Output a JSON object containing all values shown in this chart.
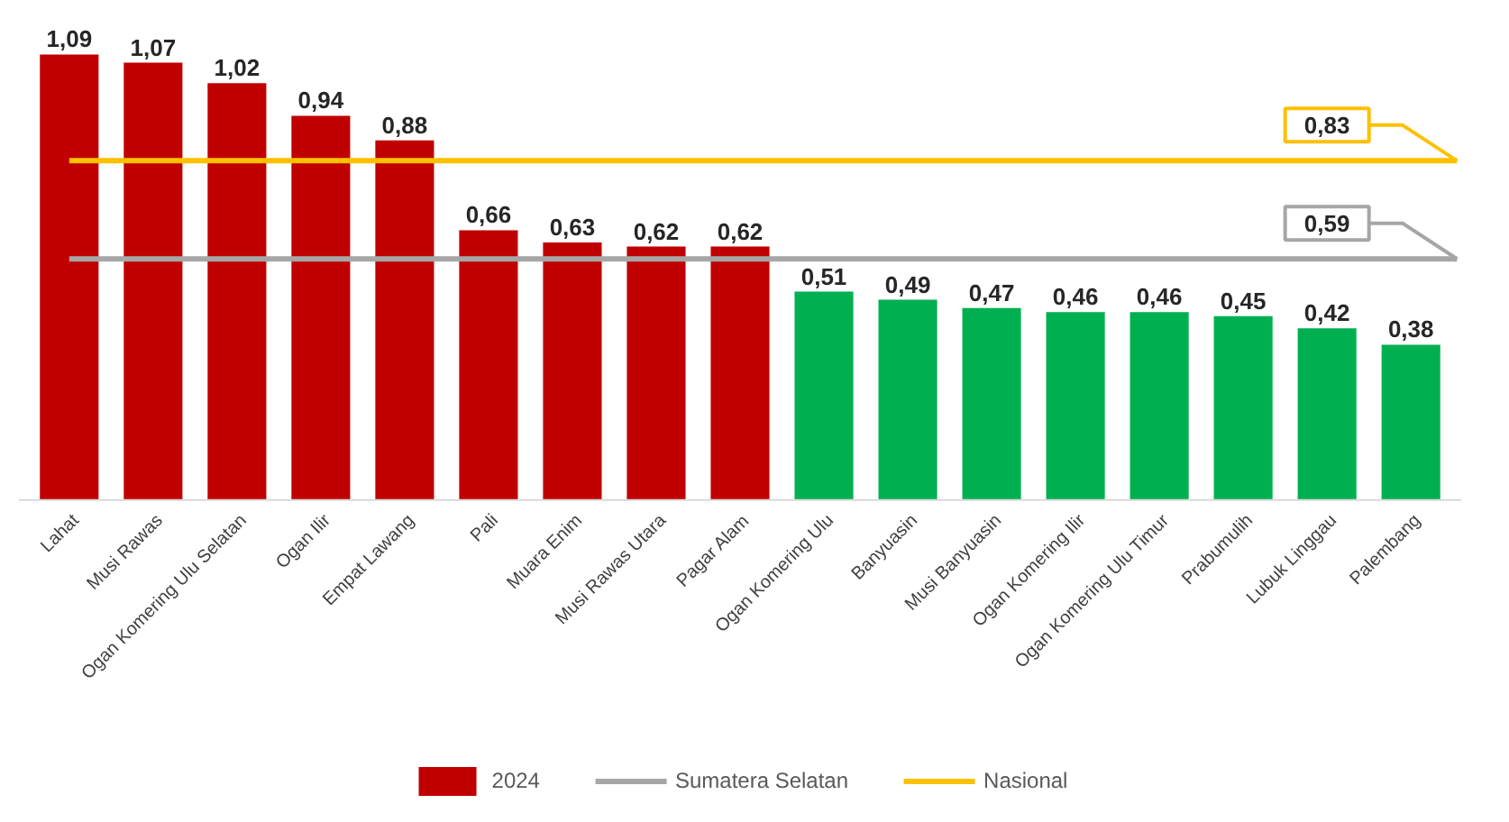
{
  "chart_data": {
    "type": "bar",
    "categories": [
      "Lahat",
      "Musi Rawas",
      "Ogan Komering Ulu Selatan",
      "Ogan Ilir",
      "Empat Lawang",
      "Pali",
      "Muara Enim",
      "Musi Rawas Utara",
      "Pagar Alam",
      "Ogan Komering Ulu",
      "Banyuasin",
      "Musi Banyuasin",
      "Ogan Komering Ilir",
      "Ogan Komering Ulu Timur",
      "Prabumulih",
      "Lubuk Linggau",
      "Palembang"
    ],
    "series": [
      {
        "name": "2024",
        "color": "#c00000",
        "colors": [
          "#c00000",
          "#c00000",
          "#c00000",
          "#c00000",
          "#c00000",
          "#c00000",
          "#c00000",
          "#c00000",
          "#c00000",
          "#00b050",
          "#00b050",
          "#00b050",
          "#00b050",
          "#00b050",
          "#00b050",
          "#00b050",
          "#00b050"
        ],
        "values": [
          1.09,
          1.07,
          1.02,
          0.94,
          0.88,
          0.66,
          0.63,
          0.62,
          0.62,
          0.51,
          0.49,
          0.47,
          0.46,
          0.46,
          0.45,
          0.42,
          0.38
        ],
        "value_labels": [
          "1,09",
          "1,07",
          "1,02",
          "0,94",
          "0,88",
          "0,66",
          "0,63",
          "0,62",
          "0,62",
          "0,51",
          "0,49",
          "0,47",
          "0,46",
          "0,46",
          "0,45",
          "0,42",
          "0,38"
        ]
      }
    ],
    "ref_lines": [
      {
        "axis": "y",
        "value": 0.59,
        "label": "Sumatera Selatan",
        "color": "#a6a6a6"
      },
      {
        "axis": "y",
        "value": 0.83,
        "label": "Nasional",
        "color": "#ffc000"
      }
    ],
    "annotations": [
      {
        "text": "0,59",
        "y": 0.59
      },
      {
        "text": "0,83",
        "y": 0.83
      }
    ],
    "legend": "bottom"
  }
}
